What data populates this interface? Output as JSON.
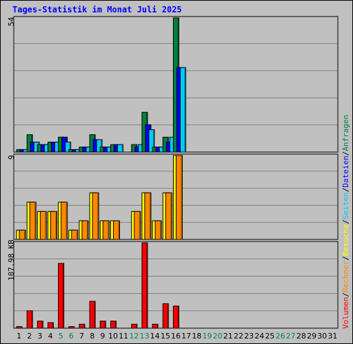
{
  "title": "Tages-Statistik im Monat Juli 2025",
  "legend": [
    {
      "label": "Volumen",
      "color": "#ff0000"
    },
    {
      "label": "Rechner",
      "color": "#ff8800"
    },
    {
      "label": "Besuche",
      "color": "#ffff00"
    },
    {
      "label": "Seiten",
      "color": "#00ccff"
    },
    {
      "label": "Dateien",
      "color": "#0000ff"
    },
    {
      "label": "Anfragen",
      "color": "#008040"
    }
  ],
  "separator": "/",
  "chart_data": {
    "type": "bar",
    "categories": [
      "1",
      "2",
      "3",
      "4",
      "5",
      "6",
      "7",
      "8",
      "9",
      "10",
      "11",
      "12",
      "13",
      "14",
      "15",
      "16",
      "17",
      "18",
      "19",
      "20",
      "21",
      "22",
      "23",
      "24",
      "25",
      "26",
      "27",
      "28",
      "29",
      "30",
      "31"
    ],
    "weekend_days": [
      "5",
      "6",
      "12",
      "13",
      "19",
      "20",
      "26",
      "27"
    ],
    "panels": [
      {
        "ymax_label": "54",
        "ylim": [
          0,
          54
        ],
        "series": [
          {
            "name": "Anfragen",
            "color": "#008040",
            "values": [
              1,
              7,
              3,
              4,
              6,
              1,
              2,
              7,
              2,
              3,
              0,
              3,
              16,
              2,
              6,
              54,
              0,
              0,
              0,
              0,
              0,
              0,
              0,
              0,
              0,
              0,
              0,
              0,
              0,
              0,
              0
            ]
          },
          {
            "name": "Dateien",
            "color": "#0000ff",
            "values": [
              1,
              4,
              3,
              4,
              6,
              1,
              2,
              5,
              2,
              3,
              0,
              2,
              11,
              2,
              4,
              34,
              0,
              0,
              0,
              0,
              0,
              0,
              0,
              0,
              0,
              0,
              0,
              0,
              0,
              0,
              0
            ]
          },
          {
            "name": "Seiten",
            "color": "#00ccff",
            "values": [
              1,
              4,
              3,
              4,
              4,
              1,
              2,
              5,
              2,
              3,
              0,
              3,
              9,
              2,
              6,
              34,
              0,
              0,
              0,
              0,
              0,
              0,
              0,
              0,
              0,
              0,
              0,
              0,
              0,
              0,
              0
            ]
          }
        ]
      },
      {
        "ymax_label": "9",
        "ylim": [
          0,
          9
        ],
        "series": [
          {
            "name": "Besuche",
            "color": "#ffff00",
            "values": [
              1,
              4,
              3,
              3,
              4,
              1,
              2,
              5,
              2,
              2,
              0,
              3,
              5,
              2,
              5,
              9,
              0,
              0,
              0,
              0,
              0,
              0,
              0,
              0,
              0,
              0,
              0,
              0,
              0,
              0,
              0
            ]
          },
          {
            "name": "Rechner",
            "color": "#ff8800",
            "values": [
              1,
              4,
              3,
              3,
              4,
              1,
              2,
              5,
              2,
              2,
              0,
              3,
              5,
              2,
              5,
              9,
              0,
              0,
              0,
              0,
              0,
              0,
              0,
              0,
              0,
              0,
              0,
              0,
              0,
              0,
              0
            ]
          }
        ]
      },
      {
        "ymax_label": "107.98 KB",
        "ylim": [
          0,
          107.98
        ],
        "unit": "KB",
        "series": [
          {
            "name": "Volumen",
            "color": "#ff0000",
            "values": [
              2,
              22,
              9,
              7,
              82,
              2,
              5,
              34,
              9,
              9,
              0,
              5,
              108,
              5,
              31,
              28,
              0,
              0,
              0,
              0,
              0,
              0,
              0,
              0,
              0,
              0,
              0,
              0,
              0,
              0,
              0
            ]
          }
        ]
      }
    ]
  }
}
